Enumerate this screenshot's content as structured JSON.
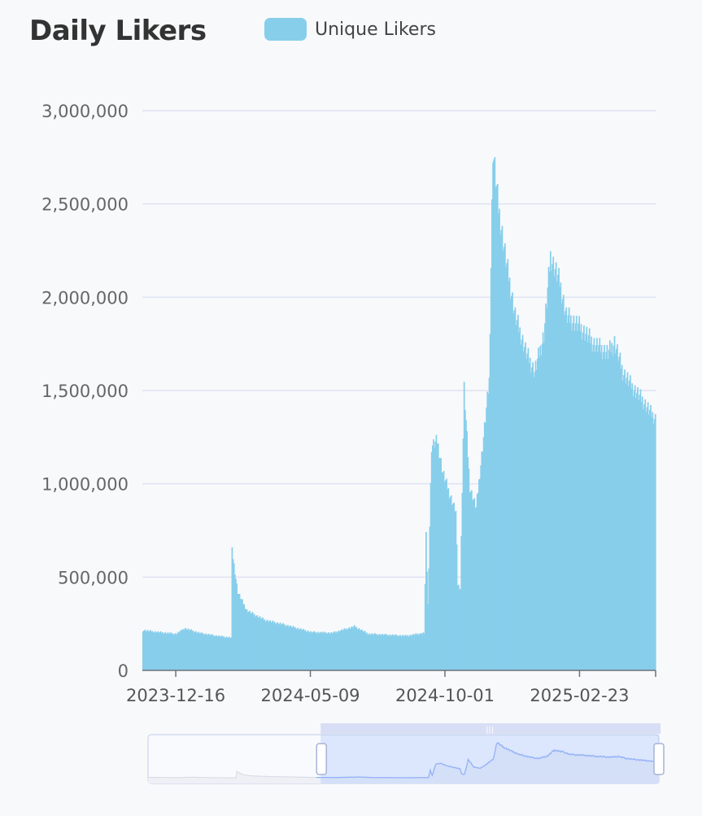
{
  "chart_data": {
    "type": "bar",
    "title": "Daily Likers",
    "xlabel": "",
    "ylabel": "",
    "ylim": [
      0,
      3000000
    ],
    "yticks": [
      "3,000,000",
      "2,500,000",
      "2,000,000",
      "1,500,000",
      "1,000,000",
      "500,000",
      "0"
    ],
    "xticks": [
      "2023-12-16",
      "2024-05-09",
      "2024-10-01",
      "2025-02-23"
    ],
    "grid": true,
    "legend_position": "top",
    "series": [
      {
        "name": "Unique Likers",
        "color": "#87ceeb",
        "x_start": "2023-11-10",
        "points": [
          [
            "2023-11-10",
            215000
          ],
          [
            "2023-11-25",
            205000
          ],
          [
            "2023-12-16",
            195000
          ],
          [
            "2023-12-25",
            225000
          ],
          [
            "2024-01-10",
            200000
          ],
          [
            "2024-01-28",
            185000
          ],
          [
            "2024-02-13",
            175000
          ],
          [
            "2024-02-14",
            640000
          ],
          [
            "2024-02-20",
            420000
          ],
          [
            "2024-03-01",
            320000
          ],
          [
            "2024-03-20",
            270000
          ],
          [
            "2024-04-10",
            245000
          ],
          [
            "2024-05-09",
            205000
          ],
          [
            "2024-06-01",
            200000
          ],
          [
            "2024-06-25",
            235000
          ],
          [
            "2024-07-10",
            195000
          ],
          [
            "2024-08-20",
            185000
          ],
          [
            "2024-09-08",
            200000
          ],
          [
            "2024-09-10",
            720000
          ],
          [
            "2024-09-12",
            350000
          ],
          [
            "2024-09-16",
            1200000
          ],
          [
            "2024-09-22",
            1230000
          ],
          [
            "2024-09-28",
            1060000
          ],
          [
            "2024-10-05",
            950000
          ],
          [
            "2024-10-12",
            850000
          ],
          [
            "2024-10-14",
            460000
          ],
          [
            "2024-10-17",
            440000
          ],
          [
            "2024-10-21",
            1510000
          ],
          [
            "2024-10-27",
            980000
          ],
          [
            "2024-11-03",
            870000
          ],
          [
            "2024-11-10",
            1200000
          ],
          [
            "2024-11-17",
            1550000
          ],
          [
            "2024-11-21",
            2790000
          ],
          [
            "2024-11-27",
            2480000
          ],
          [
            "2024-12-05",
            2200000
          ],
          [
            "2024-12-15",
            1900000
          ],
          [
            "2024-12-27",
            1700000
          ],
          [
            "2025-01-05",
            1600000
          ],
          [
            "2025-01-15",
            1800000
          ],
          [
            "2025-01-22",
            2220000
          ],
          [
            "2025-02-01",
            2080000
          ],
          [
            "2025-02-08",
            1900000
          ],
          [
            "2025-02-23",
            1840000
          ],
          [
            "2025-03-10",
            1750000
          ],
          [
            "2025-03-25",
            1700000
          ],
          [
            "2025-04-01",
            1760000
          ],
          [
            "2025-04-10",
            1600000
          ],
          [
            "2025-04-20",
            1520000
          ],
          [
            "2025-05-01",
            1450000
          ],
          [
            "2025-05-10",
            1380000
          ],
          [
            "2025-05-15",
            1350000
          ]
        ]
      }
    ]
  },
  "zoom_slider": {
    "range_start": 0.33,
    "range_end": 1.0,
    "handle_glyph": "|||"
  }
}
